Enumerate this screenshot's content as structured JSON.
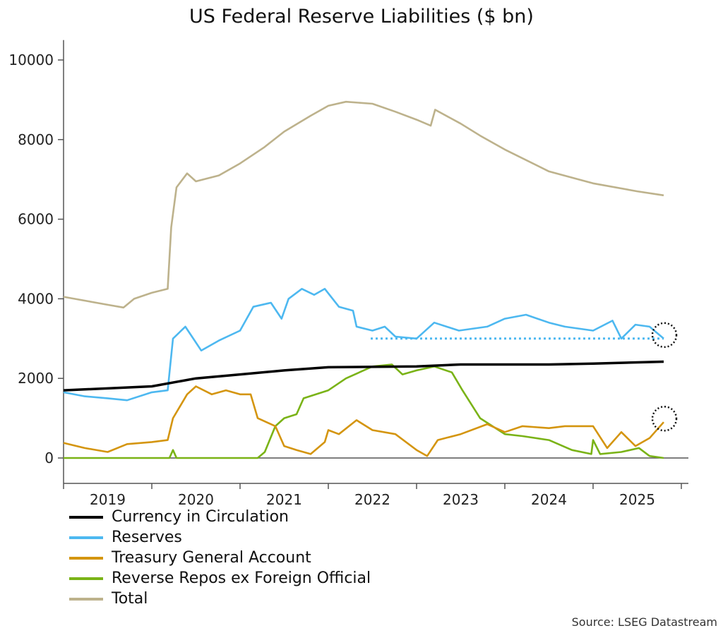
{
  "chart_data": {
    "type": "line",
    "title": "US Federal Reserve Liabilities ($ bn)",
    "xlabel": "",
    "ylabel": "",
    "ylim": [
      -500,
      10500
    ],
    "xlim": [
      2019.0,
      2026.1
    ],
    "yticks": [
      0,
      2000,
      4000,
      6000,
      8000,
      10000
    ],
    "xtick_labels": [
      "2019",
      "2020",
      "2021",
      "2022",
      "2023",
      "2024",
      "2025"
    ],
    "grid": false,
    "legend_position": "bottom-left",
    "series": [
      {
        "name": "Currency in Circulation",
        "color": "#000000",
        "points": [
          [
            2019.0,
            1700
          ],
          [
            2020.0,
            1800
          ],
          [
            2020.25,
            1900
          ],
          [
            2020.5,
            2000
          ],
          [
            2021.0,
            2100
          ],
          [
            2021.5,
            2200
          ],
          [
            2022.0,
            2280
          ],
          [
            2023.0,
            2300
          ],
          [
            2023.5,
            2350
          ],
          [
            2024.5,
            2350
          ],
          [
            2025.0,
            2370
          ],
          [
            2025.8,
            2420
          ]
        ]
      },
      {
        "name": "Reserves",
        "color": "#4DB8F0",
        "points": [
          [
            2019.0,
            1650
          ],
          [
            2019.24,
            1550
          ],
          [
            2019.5,
            1500
          ],
          [
            2019.72,
            1450
          ],
          [
            2020.0,
            1650
          ],
          [
            2020.18,
            1700
          ],
          [
            2020.24,
            3000
          ],
          [
            2020.38,
            3300
          ],
          [
            2020.56,
            2700
          ],
          [
            2020.76,
            2950
          ],
          [
            2021.0,
            3200
          ],
          [
            2021.15,
            3800
          ],
          [
            2021.35,
            3900
          ],
          [
            2021.47,
            3500
          ],
          [
            2021.55,
            4000
          ],
          [
            2021.7,
            4250
          ],
          [
            2021.84,
            4100
          ],
          [
            2021.96,
            4250
          ],
          [
            2022.12,
            3800
          ],
          [
            2022.28,
            3700
          ],
          [
            2022.32,
            3300
          ],
          [
            2022.5,
            3200
          ],
          [
            2022.64,
            3300
          ],
          [
            2022.76,
            3050
          ],
          [
            2023.0,
            3000
          ],
          [
            2023.2,
            3400
          ],
          [
            2023.48,
            3200
          ],
          [
            2023.8,
            3300
          ],
          [
            2024.0,
            3500
          ],
          [
            2024.24,
            3600
          ],
          [
            2024.5,
            3400
          ],
          [
            2024.68,
            3300
          ],
          [
            2025.0,
            3200
          ],
          [
            2025.22,
            3450
          ],
          [
            2025.32,
            3000
          ],
          [
            2025.48,
            3350
          ],
          [
            2025.64,
            3300
          ],
          [
            2025.8,
            3000
          ]
        ]
      },
      {
        "name": "Treasury General Account",
        "color": "#D4950F",
        "points": [
          [
            2019.0,
            380
          ],
          [
            2019.24,
            250
          ],
          [
            2019.5,
            150
          ],
          [
            2019.72,
            350
          ],
          [
            2020.0,
            400
          ],
          [
            2020.18,
            450
          ],
          [
            2020.24,
            1000
          ],
          [
            2020.4,
            1600
          ],
          [
            2020.5,
            1800
          ],
          [
            2020.68,
            1600
          ],
          [
            2020.84,
            1700
          ],
          [
            2021.0,
            1600
          ],
          [
            2021.12,
            1600
          ],
          [
            2021.2,
            1000
          ],
          [
            2021.4,
            800
          ],
          [
            2021.5,
            300
          ],
          [
            2021.64,
            200
          ],
          [
            2021.8,
            100
          ],
          [
            2021.96,
            400
          ],
          [
            2022.0,
            700
          ],
          [
            2022.12,
            600
          ],
          [
            2022.32,
            950
          ],
          [
            2022.5,
            700
          ],
          [
            2022.76,
            600
          ],
          [
            2023.0,
            200
          ],
          [
            2023.12,
            50
          ],
          [
            2023.24,
            450
          ],
          [
            2023.5,
            600
          ],
          [
            2023.8,
            850
          ],
          [
            2024.0,
            650
          ],
          [
            2024.2,
            800
          ],
          [
            2024.5,
            750
          ],
          [
            2024.68,
            800
          ],
          [
            2025.0,
            800
          ],
          [
            2025.16,
            250
          ],
          [
            2025.32,
            650
          ],
          [
            2025.48,
            300
          ],
          [
            2025.64,
            500
          ],
          [
            2025.8,
            900
          ]
        ]
      },
      {
        "name": "Reverse Repos ex Foreign Official",
        "color": "#7AB317",
        "points": [
          [
            2019.0,
            0
          ],
          [
            2020.2,
            0
          ],
          [
            2020.24,
            200
          ],
          [
            2020.28,
            0
          ],
          [
            2021.2,
            0
          ],
          [
            2021.28,
            150
          ],
          [
            2021.4,
            800
          ],
          [
            2021.5,
            1000
          ],
          [
            2021.64,
            1100
          ],
          [
            2021.72,
            1500
          ],
          [
            2022.0,
            1700
          ],
          [
            2022.2,
            2000
          ],
          [
            2022.5,
            2300
          ],
          [
            2022.72,
            2350
          ],
          [
            2022.84,
            2100
          ],
          [
            2023.0,
            2200
          ],
          [
            2023.2,
            2300
          ],
          [
            2023.4,
            2150
          ],
          [
            2023.52,
            1700
          ],
          [
            2023.72,
            1000
          ],
          [
            2024.0,
            600
          ],
          [
            2024.2,
            550
          ],
          [
            2024.5,
            450
          ],
          [
            2024.76,
            200
          ],
          [
            2024.98,
            100
          ],
          [
            2025.0,
            450
          ],
          [
            2025.08,
            100
          ],
          [
            2025.32,
            150
          ],
          [
            2025.52,
            250
          ],
          [
            2025.64,
            50
          ],
          [
            2025.8,
            0
          ]
        ]
      },
      {
        "name": "Total",
        "color": "#BDB28C",
        "points": [
          [
            2019.0,
            4050
          ],
          [
            2019.5,
            3850
          ],
          [
            2019.68,
            3780
          ],
          [
            2019.8,
            4000
          ],
          [
            2020.0,
            4150
          ],
          [
            2020.18,
            4250
          ],
          [
            2020.22,
            5800
          ],
          [
            2020.28,
            6800
          ],
          [
            2020.4,
            7150
          ],
          [
            2020.5,
            6950
          ],
          [
            2020.76,
            7100
          ],
          [
            2021.0,
            7400
          ],
          [
            2021.27,
            7800
          ],
          [
            2021.5,
            8200
          ],
          [
            2021.8,
            8600
          ],
          [
            2022.0,
            8850
          ],
          [
            2022.2,
            8950
          ],
          [
            2022.5,
            8900
          ],
          [
            2022.76,
            8700
          ],
          [
            2023.0,
            8500
          ],
          [
            2023.16,
            8350
          ],
          [
            2023.21,
            8750
          ],
          [
            2023.5,
            8400
          ],
          [
            2023.72,
            8100
          ],
          [
            2024.0,
            7750
          ],
          [
            2024.5,
            7200
          ],
          [
            2025.0,
            6900
          ],
          [
            2025.5,
            6700
          ],
          [
            2025.8,
            6600
          ]
        ]
      }
    ],
    "annotations": [
      {
        "type": "dotted-line",
        "series": "Reserves",
        "value": 3000,
        "x_range": [
          2022.48,
          2025.8
        ]
      },
      {
        "type": "dotted-circle",
        "series": "Reserves",
        "x": 2025.8
      },
      {
        "type": "dotted-circle",
        "series": "Treasury General Account",
        "x": 2025.8
      }
    ]
  },
  "source": "Source: LSEG Datastream"
}
